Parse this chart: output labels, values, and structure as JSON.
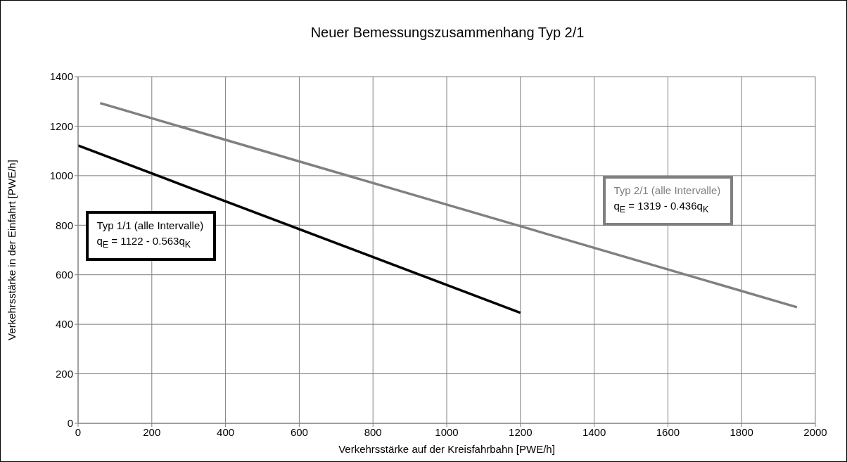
{
  "chart_data": {
    "type": "line",
    "title": "Neuer Bemessungszusammenhang Typ 2/1",
    "xlabel": "Verkehrsstärke auf der Kreisfahrbahn [PWE/h]",
    "ylabel": "Verkehrsstärke in der Einfahrt [PWE/h]",
    "series": [
      {
        "name": "Typ 1/1 (alle Intervalle)",
        "color": "#000000",
        "x": [
          0,
          1200
        ],
        "values": [
          1122,
          446
        ]
      },
      {
        "name": "Typ 2/1 (alle Intervalle)",
        "color": "#808080",
        "x": [
          60,
          1950
        ],
        "values": [
          1293,
          469
        ]
      }
    ],
    "annotations": [
      "q$_{E}$ = 1122 - 0.563q$_{K}$",
      "q$_{E}$ = 1319 - 0.436q$_{K}$"
    ],
    "xlim": [
      0,
      2000
    ],
    "xticks": [
      0,
      200,
      400,
      600,
      800,
      1000,
      1200,
      1400,
      1600,
      1800,
      2000
    ],
    "ylim": [
      0,
      1400
    ],
    "yticks": [
      0,
      200,
      400,
      600,
      800,
      1000,
      1200,
      1400
    ],
    "grid": true,
    "marker": "none",
    "line_style": "solid"
  }
}
